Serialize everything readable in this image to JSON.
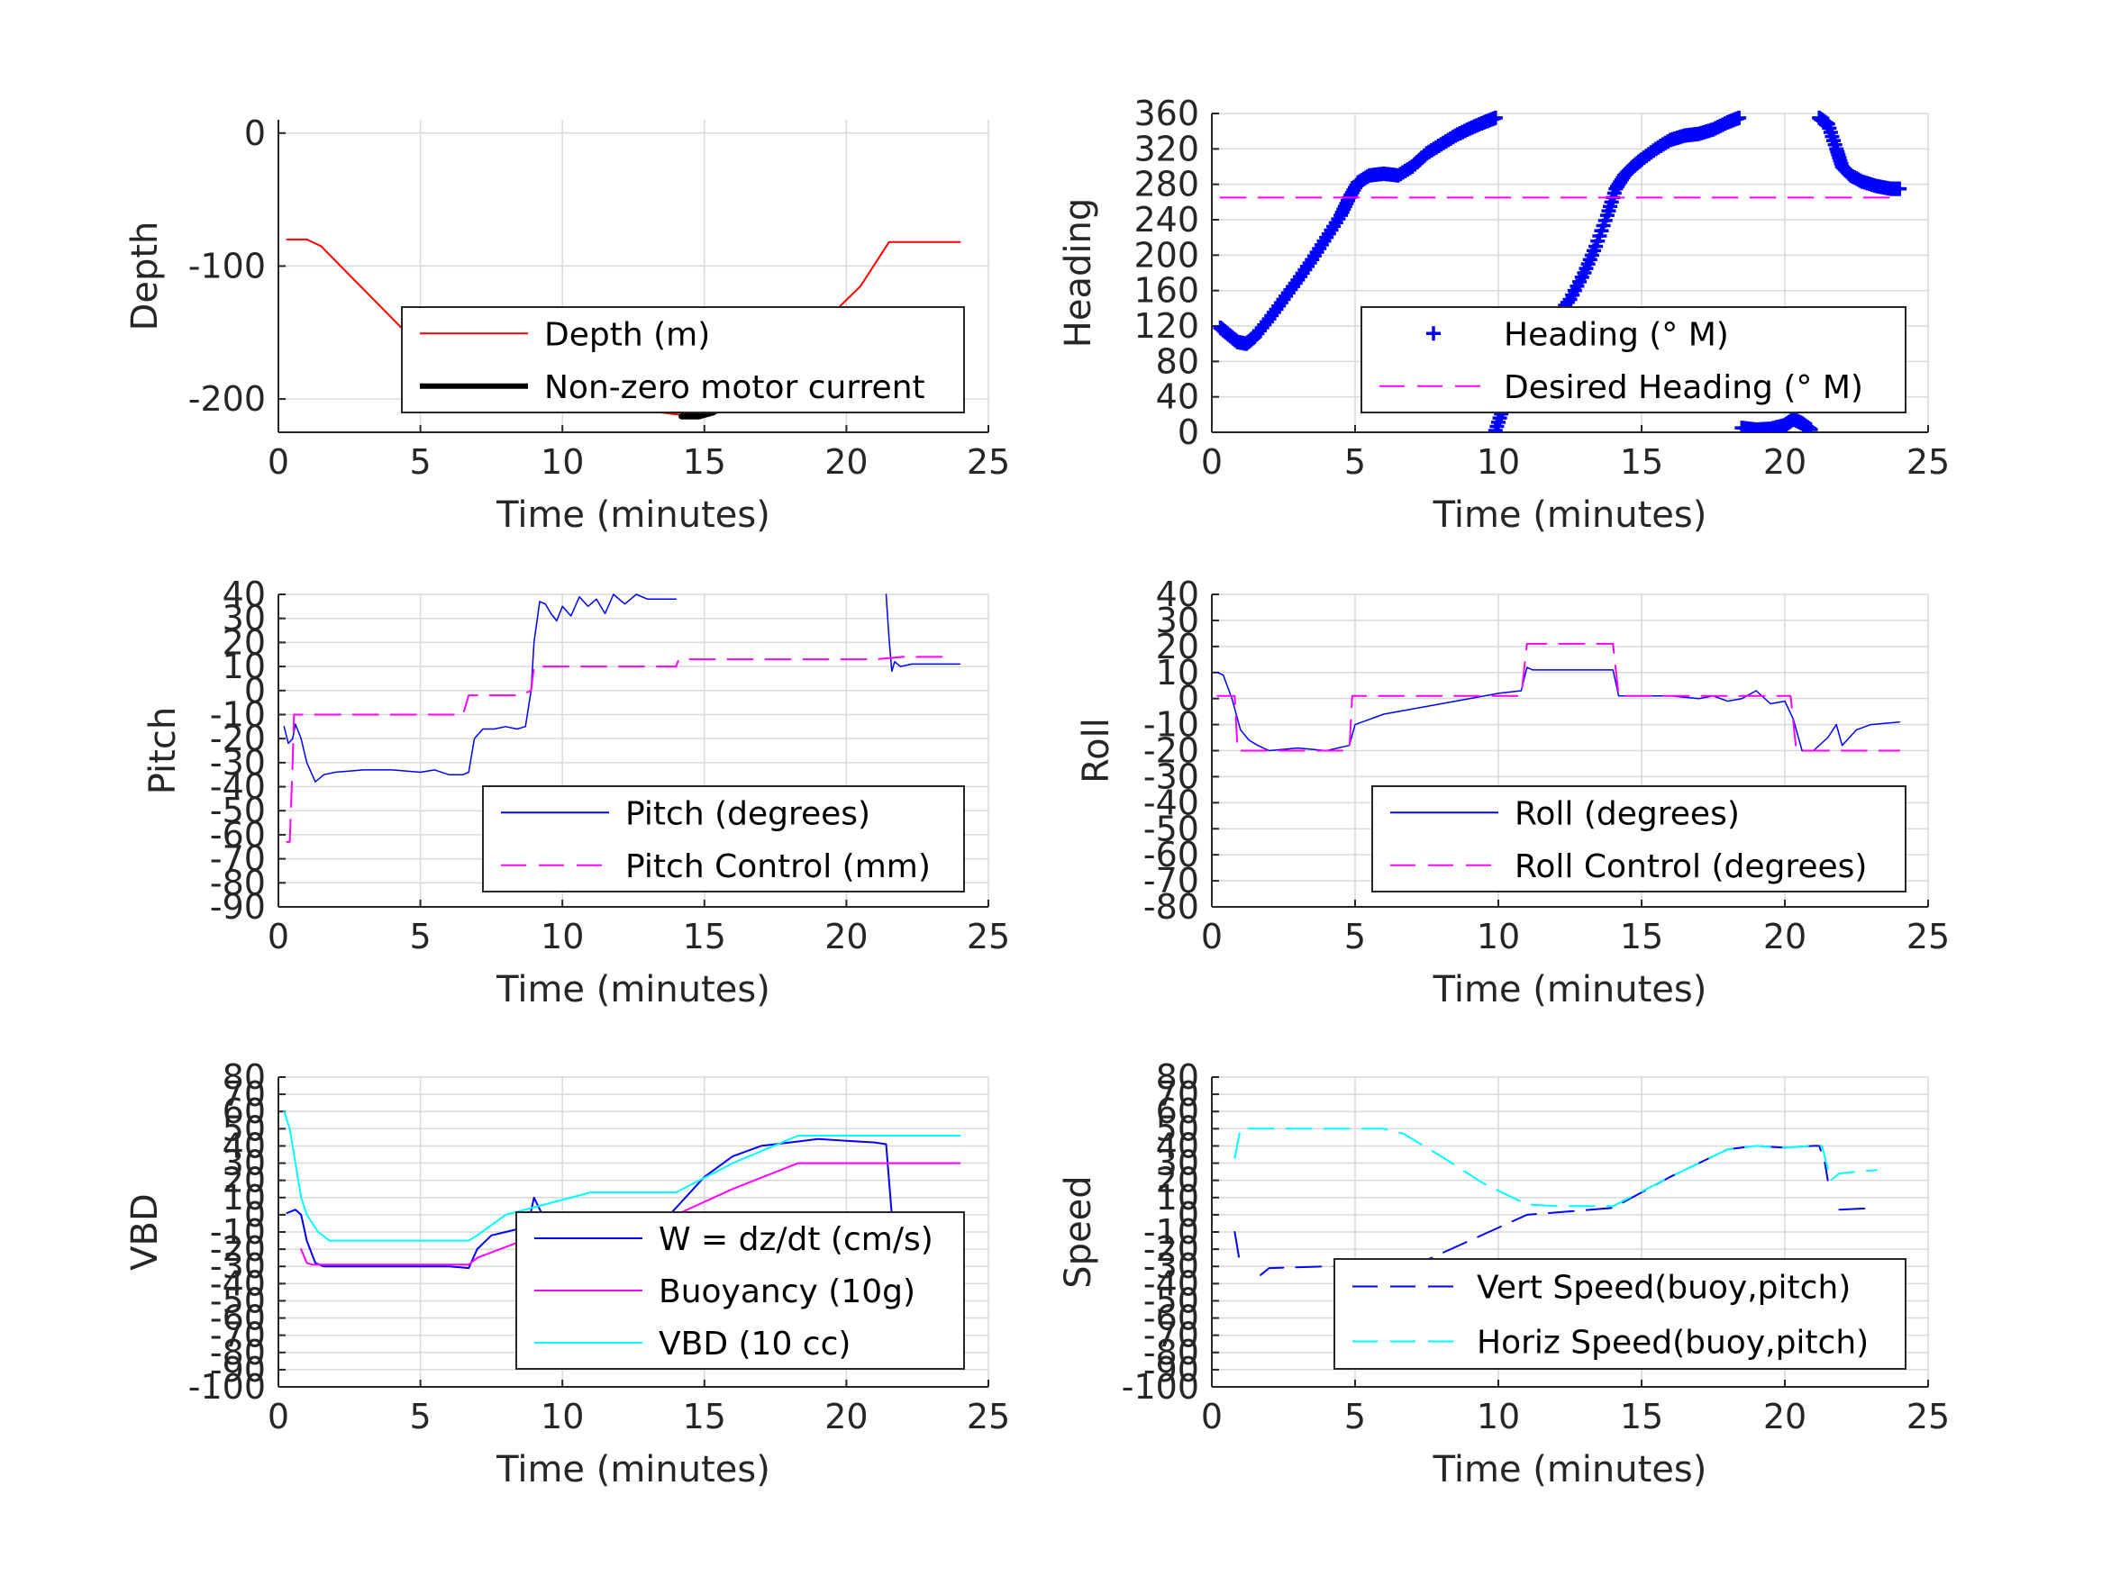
{
  "figure": {
    "background": "#ffffff",
    "xlabel": "Time (minutes)"
  },
  "chart_data": [
    {
      "id": "depth",
      "type": "line",
      "xlabel": "Time (minutes)",
      "ylabel": "Depth",
      "xlim": [
        0,
        25
      ],
      "ylim": [
        -225,
        10
      ],
      "xticks": [
        0,
        5,
        10,
        15,
        20,
        25
      ],
      "yticks": [
        0,
        -100,
        -200
      ],
      "grid": true,
      "legend_position": "middle-right",
      "series": [
        {
          "name": "Depth (m)",
          "color": "#ff0000",
          "style": "solid",
          "width": 2,
          "x": [
            0.3,
            1.0,
            1.5,
            4.5,
            6.7,
            8.0,
            9.0,
            11.0,
            14.2,
            15.0,
            16.5,
            18.2,
            20.5,
            21.5,
            24.0
          ],
          "y": [
            -80,
            -80,
            -85,
            -150,
            -186,
            -194,
            -200,
            -204,
            -212,
            -212,
            -200,
            -163,
            -115,
            -82,
            -82
          ]
        },
        {
          "name": "Non-zero motor current",
          "color": "#000000",
          "style": "dots",
          "width": 7,
          "segments": [
            {
              "x": [
                6.7,
                7.2,
                7.8,
                8.3,
                8.6
              ],
              "y": [
                -186,
                -191,
                -195,
                -198,
                -200
              ]
            },
            {
              "x": [
                9.0,
                9.3,
                9.7,
                10.2,
                10.8
              ],
              "y": [
                -200,
                -199,
                -200,
                -203,
                -205
              ]
            },
            {
              "x": [
                14.2,
                14.8,
                15.3,
                16.0,
                16.8,
                17.5,
                18.2
              ],
              "y": [
                -213,
                -213,
                -210,
                -201,
                -188,
                -174,
                -160
              ]
            }
          ]
        }
      ]
    },
    {
      "id": "heading",
      "type": "scatter",
      "xlabel": "Time (minutes)",
      "ylabel": "Heading",
      "xlim": [
        0,
        25
      ],
      "ylim": [
        0,
        360
      ],
      "xticks": [
        0,
        5,
        10,
        15,
        20,
        25
      ],
      "yticks": [
        0,
        40,
        80,
        120,
        160,
        200,
        240,
        280,
        320,
        360
      ],
      "grid": true,
      "legend_position": "lower-right",
      "series": [
        {
          "name": "Heading (° M)",
          "color": "#0000ff",
          "style": "plus",
          "segments": [
            {
              "x": [
                0.3,
                0.6,
                0.9,
                1.2,
                1.5,
                2.0,
                2.5,
                3.0,
                3.5,
                4.0,
                4.5,
                4.8,
                5.1,
                5.5,
                6.0,
                6.5,
                7.0,
                7.5,
                8.0,
                8.5,
                9.0,
                9.5,
                9.9
              ],
              "y": [
                118,
                110,
                102,
                100,
                108,
                128,
                150,
                172,
                195,
                220,
                245,
                265,
                282,
                290,
                292,
                290,
                300,
                315,
                325,
                335,
                343,
                350,
                355
              ]
            },
            {
              "x": [
                9.9,
                10.2,
                10.5,
                10.8,
                11.2,
                11.6,
                12.0,
                12.5,
                13.0,
                13.4,
                13.8,
                14.1,
                14.4,
                14.7,
                15.0,
                15.5,
                16.0,
                16.5,
                17.0,
                17.5,
                18.0,
                18.4
              ],
              "y": [
                2,
                30,
                60,
                85,
                105,
                118,
                130,
                150,
                180,
                210,
                245,
                275,
                290,
                300,
                308,
                320,
                330,
                335,
                337,
                342,
                350,
                355
              ]
            },
            {
              "x": [
                18.5,
                19.0,
                19.5,
                20.0,
                20.3,
                20.6,
                20.9
              ],
              "y": [
                5,
                3,
                4,
                8,
                15,
                10,
                3
              ]
            },
            {
              "x": [
                21.2,
                21.5,
                21.8,
                22.0,
                22.3,
                22.7,
                23.2,
                23.7,
                24.0
              ],
              "y": [
                355,
                348,
                320,
                300,
                290,
                283,
                278,
                275,
                275
              ]
            }
          ]
        },
        {
          "name": "Desired Heading (° M)",
          "color": "#ff00ff",
          "style": "dash",
          "width": 2,
          "x": [
            0.3,
            24.0
          ],
          "y": [
            265,
            265
          ]
        }
      ]
    },
    {
      "id": "pitch",
      "type": "line",
      "xlabel": "Time (minutes)",
      "ylabel": "Pitch",
      "xlim": [
        0,
        25
      ],
      "ylim": [
        -90,
        40
      ],
      "xticks": [
        0,
        5,
        10,
        15,
        20,
        25
      ],
      "yticks": [
        40,
        30,
        20,
        10,
        0,
        -10,
        -20,
        -30,
        -40,
        -50,
        -60,
        -70,
        -80,
        -90
      ],
      "grid": true,
      "legend_position": "lower-right",
      "series": [
        {
          "name": "Pitch (degrees)",
          "color": "#0000ff",
          "style": "solid",
          "width": 1.5,
          "segments": [
            {
              "x": [
                0.2,
                0.35,
                0.5,
                0.6,
                0.8,
                1.0,
                1.3,
                1.6,
                2.0,
                3.0,
                4.0,
                5.0,
                5.5,
                6.0,
                6.5,
                6.7,
                6.9,
                7.2,
                7.6,
                8.0,
                8.4,
                8.7,
                8.9,
                9.0,
                9.2,
                9.4,
                9.6,
                9.8,
                10.0,
                10.3,
                10.6,
                10.9,
                11.2,
                11.5,
                11.8,
                12.2,
                12.6,
                13.0,
                13.5,
                14.0
              ],
              "y": [
                -15,
                -22,
                -20,
                -14,
                -20,
                -30,
                -38,
                -35,
                -34,
                -33,
                -33,
                -34,
                -33,
                -35,
                -35,
                -34,
                -20,
                -16,
                -16,
                -15,
                -16,
                -15,
                0,
                20,
                37,
                36,
                32,
                29,
                35,
                31,
                39,
                35,
                38,
                32,
                40,
                36,
                40,
                38,
                38,
                38
              ]
            },
            {
              "x": [
                21.4,
                21.5,
                21.6,
                21.7,
                21.9,
                22.3,
                23.0,
                24.0
              ],
              "y": [
                40,
                22,
                8,
                12,
                10,
                11,
                11,
                11
              ]
            }
          ]
        },
        {
          "name": "Pitch Control (mm)",
          "color": "#ff00ff",
          "style": "dash",
          "width": 2,
          "x": [
            0.3,
            0.4,
            0.5,
            0.55,
            6.5,
            6.7,
            8.5,
            8.9,
            9.0,
            14.0,
            14.1,
            21.0,
            22.0,
            23.5
          ],
          "y": [
            -63,
            -63,
            -30,
            -10,
            -10,
            -2,
            -2,
            0,
            10,
            10,
            13,
            13,
            14,
            14
          ]
        }
      ]
    },
    {
      "id": "roll",
      "type": "line",
      "xlabel": "Time (minutes)",
      "ylabel": "Roll",
      "xlim": [
        0,
        25
      ],
      "ylim": [
        -80,
        40
      ],
      "xticks": [
        0,
        5,
        10,
        15,
        20,
        25
      ],
      "yticks": [
        40,
        30,
        20,
        10,
        0,
        -10,
        -20,
        -30,
        -40,
        -50,
        -60,
        -70,
        -80
      ],
      "grid": true,
      "legend_position": "lower-right",
      "series": [
        {
          "name": "Roll (degrees)",
          "color": "#0000ff",
          "style": "solid",
          "width": 1.5,
          "x": [
            0.2,
            0.4,
            0.7,
            1.0,
            1.3,
            1.6,
            2.0,
            3.0,
            4.0,
            4.8,
            5.0,
            5.5,
            6.0,
            7.0,
            8.0,
            9.0,
            10.0,
            10.8,
            11.0,
            11.2,
            12.0,
            13.0,
            14.0,
            14.2,
            15.0,
            16.0,
            17.0,
            17.5,
            18.0,
            18.5,
            19.0,
            19.5,
            20.0,
            20.3,
            20.6,
            21.0,
            21.5,
            21.8,
            22.0,
            22.5,
            23.0,
            24.0
          ],
          "y": [
            10,
            9,
            0,
            -12,
            -16,
            -18,
            -20,
            -19,
            -20,
            -18,
            -10,
            -8,
            -6,
            -4,
            -2,
            0,
            2,
            3,
            12,
            11,
            11,
            11,
            11,
            1,
            1,
            1,
            0,
            1,
            -1,
            0,
            3,
            -2,
            -1,
            -8,
            -20,
            -20,
            -15,
            -10,
            -18,
            -12,
            -10,
            -9
          ]
        },
        {
          "name": "Roll Control (degrees)",
          "color": "#ff00ff",
          "style": "dash",
          "width": 2,
          "x": [
            0.2,
            0.8,
            0.9,
            4.8,
            4.9,
            10.8,
            11.0,
            14.0,
            14.2,
            20.2,
            20.4,
            24.0
          ],
          "y": [
            1,
            1,
            -20,
            -20,
            1,
            1,
            21,
            21,
            1,
            1,
            -20,
            -20
          ]
        }
      ]
    },
    {
      "id": "vbd",
      "type": "line",
      "xlabel": "Time (minutes)",
      "ylabel": "VBD",
      "xlim": [
        0,
        25
      ],
      "ylim": [
        -100,
        80
      ],
      "xticks": [
        0,
        5,
        10,
        15,
        20,
        25
      ],
      "yticks": [
        80,
        70,
        60,
        50,
        40,
        30,
        20,
        10,
        0,
        -10,
        -20,
        -30,
        -40,
        -50,
        -60,
        -70,
        -80,
        -90,
        -100
      ],
      "grid": true,
      "legend_position": "lower-right",
      "series": [
        {
          "name": "W = dz/dt (cm/s)",
          "color": "#0000ff",
          "style": "solid",
          "width": 2,
          "x": [
            0.3,
            0.6,
            0.8,
            1.0,
            1.3,
            1.6,
            2.0,
            4.0,
            6.0,
            6.7,
            7.0,
            7.5,
            8.0,
            8.5,
            8.8,
            9.0,
            9.3,
            9.6,
            10.0,
            11.0,
            12.0,
            13.0,
            13.5,
            14.0,
            15.0,
            16.0,
            17.0,
            18.0,
            19.0,
            20.0,
            21.0,
            21.4,
            21.6,
            22.0,
            23.0,
            24.0
          ],
          "y": [
            1,
            3,
            0,
            -15,
            -28,
            -30,
            -30,
            -30,
            -30,
            -31,
            -20,
            -12,
            -10,
            -8,
            -5,
            10,
            0,
            -8,
            -6,
            -7,
            -6,
            -5,
            -5,
            4,
            22,
            34,
            40,
            42,
            44,
            43,
            42,
            41,
            0,
            0,
            0,
            0
          ]
        },
        {
          "name": "Buoyancy (10g)",
          "color": "#ff00ff",
          "style": "solid",
          "width": 2,
          "x": [
            0.8,
            1.0,
            1.2,
            6.7,
            7.0,
            11.0,
            14.0,
            16.0,
            18.3,
            24.0
          ],
          "y": [
            -20,
            -28,
            -29,
            -29,
            -25,
            0,
            0,
            15,
            30,
            30
          ]
        },
        {
          "name": "VBD (10 cc)",
          "color": "#00ffff",
          "style": "solid",
          "width": 2,
          "x": [
            0.2,
            0.4,
            0.6,
            0.8,
            1.0,
            1.4,
            1.8,
            6.7,
            7.0,
            8.0,
            11.0,
            14.0,
            16.0,
            18.3,
            24.0
          ],
          "y": [
            60,
            50,
            30,
            10,
            0,
            -10,
            -15,
            -15,
            -12,
            0,
            13,
            13,
            30,
            46,
            46
          ]
        }
      ]
    },
    {
      "id": "speed",
      "type": "line",
      "xlabel": "Time (minutes)",
      "ylabel": "Speed",
      "xlim": [
        0,
        25
      ],
      "ylim": [
        -100,
        80
      ],
      "xticks": [
        0,
        5,
        10,
        15,
        20,
        25
      ],
      "yticks": [
        80,
        70,
        60,
        50,
        40,
        30,
        20,
        10,
        0,
        -10,
        -20,
        -30,
        -40,
        -50,
        -60,
        -70,
        -80,
        -90,
        -100
      ],
      "grid": true,
      "legend_position": "lower-right",
      "series": [
        {
          "name": "Vert Speed(buoy,pitch)",
          "color": "#0000ff",
          "style": "dash",
          "width": 2,
          "segments": [
            {
              "x": [
                0.8,
                1.0
              ],
              "y": [
                -10,
                -30
              ]
            },
            {
              "x": [
                1.7,
                2.0,
                4.0,
                6.0,
                6.7,
                7.0,
                9.0,
                11.0,
                14.0,
                16.0,
                18.0,
                19.0,
                20.0,
                21.0,
                21.2,
                21.4,
                21.5
              ],
              "y": [
                -35,
                -31,
                -30,
                -30,
                -32,
                -30,
                -15,
                0,
                4,
                22,
                38,
                40,
                39,
                40,
                40,
                30,
                20
              ]
            },
            {
              "x": [
                21.9,
                23.2
              ],
              "y": [
                3,
                4
              ]
            }
          ]
        },
        {
          "name": "Horiz Speed(buoy,pitch)",
          "color": "#00ffff",
          "style": "dash",
          "width": 2,
          "x": [
            0.8,
            1.0,
            2.0,
            4.0,
            6.0,
            6.7,
            8.0,
            9.5,
            11.0,
            12.0,
            14.0,
            16.0,
            18.0,
            19.0,
            20.0,
            21.0,
            21.3,
            21.6,
            21.9,
            22.5,
            23.2
          ],
          "y": [
            33,
            50,
            50,
            50,
            50,
            47,
            34,
            18,
            6,
            5,
            5,
            22,
            38,
            40,
            39,
            40,
            40,
            20,
            24,
            25,
            26
          ]
        }
      ]
    }
  ]
}
